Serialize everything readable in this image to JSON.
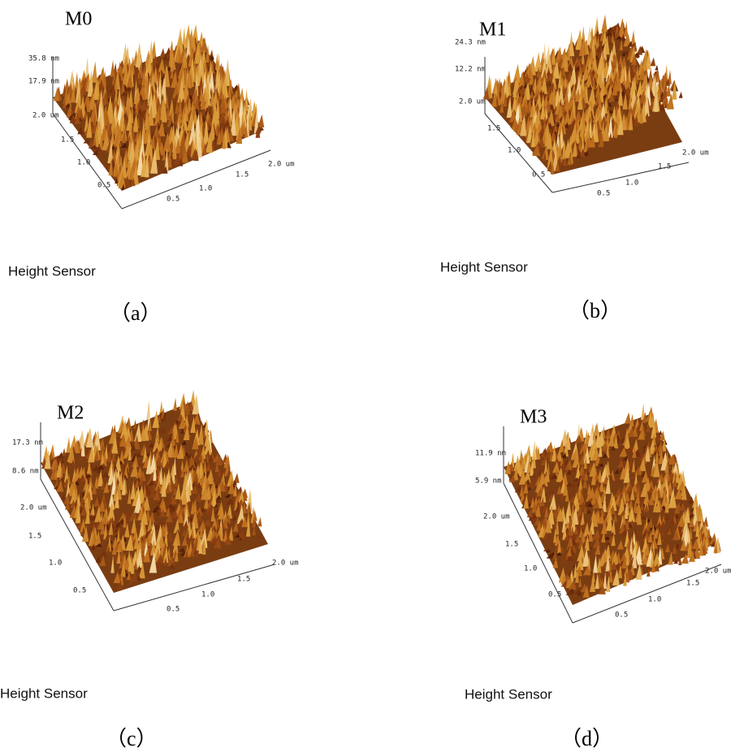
{
  "panels": [
    {
      "label": "M0",
      "z_labels": [
        "35.8 nm",
        "17.9 nm",
        "2.0 um"
      ],
      "y_ticks": [
        "1.5",
        "1.0",
        "0.5"
      ],
      "x_ticks": [
        "0.5",
        "1.0",
        "1.5",
        "2.0 um"
      ],
      "sensor": "Height Sensor",
      "caption": "（a）"
    },
    {
      "label": "M1",
      "z_labels": [
        "24.3 nm",
        "12.2 nm",
        "2.0 um"
      ],
      "y_ticks": [
        "1.5",
        "1.0",
        "0.5"
      ],
      "x_ticks": [
        "0.5",
        "1.0",
        "1.5",
        "2.0 um"
      ],
      "sensor": "Height Sensor",
      "caption": "（b）"
    },
    {
      "label": "M2",
      "z_labels": [
        "17.3 nm",
        "8.6 nm",
        "2.0 um"
      ],
      "y_ticks": [
        "1.5",
        "1.0",
        "0.5"
      ],
      "x_ticks": [
        "0.5",
        "1.0",
        "1.5",
        "2.0 um"
      ],
      "sensor": "Height Sensor",
      "caption": "（c）"
    },
    {
      "label": "M3",
      "z_labels": [
        "11.9 nm",
        "5.9 nm",
        "2.0 um"
      ],
      "y_ticks": [
        "1.5",
        "1.0",
        "0.5"
      ],
      "x_ticks": [
        "0.5",
        "1.0",
        "1.5",
        "2.0 um"
      ],
      "sensor": "Height Sensor",
      "caption": "（d）"
    }
  ]
}
